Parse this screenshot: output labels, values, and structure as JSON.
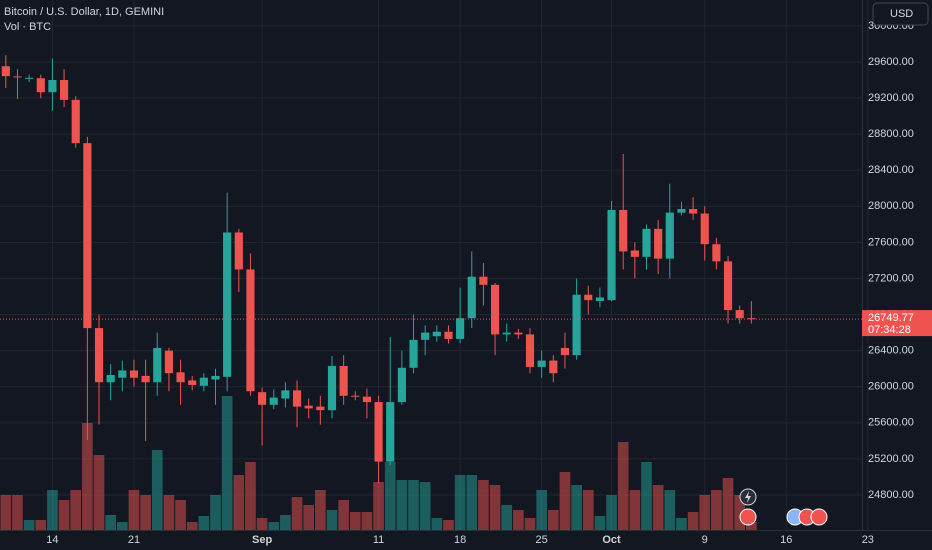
{
  "chart_data": {
    "type": "candlestick",
    "title": "Bitcoin / U.S. Dollar, 1D, GEMINI",
    "subtitle": "Vol · BTC",
    "currency": "USD",
    "countdown": "07:34:28",
    "up_color": "#26a69a",
    "down_color": "#ef5350",
    "grid": true,
    "x": [
      "08-10",
      "08-11",
      "08-12",
      "08-13",
      "08-14",
      "08-15",
      "08-16",
      "08-17",
      "08-18",
      "08-19",
      "08-20",
      "08-21",
      "08-22",
      "08-23",
      "08-24",
      "08-25",
      "08-26",
      "08-27",
      "08-28",
      "08-29",
      "08-30",
      "08-31",
      "09-01",
      "09-02",
      "09-03",
      "09-04",
      "09-05",
      "09-06",
      "09-07",
      "09-08",
      "09-09",
      "09-10",
      "09-11",
      "09-12",
      "09-13",
      "09-14",
      "09-15",
      "09-16",
      "09-17",
      "09-18",
      "09-19",
      "09-20",
      "09-21",
      "09-22",
      "09-23",
      "09-24",
      "09-25",
      "09-26",
      "09-27",
      "09-28",
      "09-29",
      "09-30",
      "10-01",
      "10-02",
      "10-03",
      "10-04",
      "10-05",
      "10-06",
      "10-07",
      "10-08",
      "10-09",
      "10-10",
      "10-11",
      "10-12",
      "10-13"
    ],
    "open": [
      29553,
      29440,
      29420,
      29420,
      29265,
      29400,
      29180,
      28700,
      26650,
      26050,
      26100,
      26180,
      26120,
      26050,
      26400,
      26160,
      26070,
      26010,
      26080,
      26110,
      27710,
      27300,
      25940,
      25800,
      25870,
      25960,
      25790,
      25780,
      25740,
      26230,
      25900,
      25890,
      25830,
      25170,
      25830,
      26210,
      26520,
      26560,
      26610,
      26530,
      26760,
      27220,
      27130,
      26580,
      26600,
      26580,
      26220,
      26290,
      26430,
      26350,
      27020,
      26950,
      26960,
      27960,
      27510,
      27440,
      27750,
      27420,
      27930,
      27970,
      27920,
      27580,
      27390,
      26850,
      26760
    ],
    "high": [
      29675,
      29520,
      29460,
      29460,
      29640,
      29520,
      29220,
      28770,
      26800,
      26250,
      26290,
      26300,
      26300,
      26600,
      26430,
      26300,
      26120,
      26150,
      26200,
      28150,
      27750,
      27480,
      25990,
      25970,
      26050,
      26070,
      25870,
      25900,
      26340,
      26350,
      25950,
      25980,
      25900,
      26550,
      26400,
      26800,
      26680,
      26680,
      26680,
      27100,
      27500,
      27370,
      27150,
      26700,
      26640,
      26650,
      26400,
      26350,
      26600,
      27200,
      27120,
      27100,
      28060,
      28580,
      27600,
      27800,
      27850,
      28250,
      28050,
      28100,
      28000,
      27650,
      27450,
      26900,
      26950
    ],
    "low": [
      29310,
      29190,
      29380,
      29200,
      29060,
      29100,
      28650,
      25410,
      25580,
      25850,
      25950,
      26000,
      25400,
      25900,
      25950,
      25800,
      25960,
      25950,
      25800,
      25950,
      27050,
      25900,
      25350,
      25750,
      25770,
      25550,
      25650,
      25580,
      25650,
      25800,
      25850,
      25650,
      24930,
      25130,
      25800,
      26150,
      26350,
      26500,
      26480,
      26480,
      26650,
      26900,
      26350,
      26500,
      26530,
      26150,
      26100,
      26050,
      26200,
      26300,
      26800,
      26880,
      26950,
      27300,
      27200,
      27300,
      27250,
      27200,
      27900,
      27850,
      27400,
      27300,
      26700,
      26700,
      26700
    ],
    "close": [
      29443,
      29430,
      29425,
      29265,
      29400,
      29180,
      28700,
      26650,
      26050,
      26130,
      26180,
      26100,
      26050,
      26430,
      26150,
      26050,
      26020,
      26100,
      26120,
      27710,
      27300,
      25950,
      25800,
      25880,
      25960,
      25780,
      25760,
      25740,
      26230,
      25900,
      25890,
      25830,
      25170,
      25830,
      26210,
      26520,
      26600,
      26610,
      26530,
      26760,
      27220,
      27130,
      26580,
      26600,
      26580,
      26220,
      26290,
      26150,
      26350,
      27020,
      26960,
      26990,
      27960,
      27500,
      27440,
      27750,
      27420,
      27930,
      27970,
      27920,
      27580,
      27390,
      26850,
      26760,
      26749.77
    ],
    "volume": [
      350,
      350,
      100,
      100,
      400,
      300,
      400,
      1070,
      750,
      150,
      80,
      400,
      350,
      800,
      350,
      300,
      80,
      140,
      350,
      1340,
      550,
      680,
      120,
      80,
      150,
      330,
      250,
      400,
      200,
      300,
      180,
      180,
      480,
      680,
      500,
      500,
      480,
      120,
      100,
      550,
      550,
      500,
      450,
      250,
      200,
      120,
      400,
      200,
      580,
      450,
      400,
      140,
      350,
      880,
      400,
      680,
      450,
      400,
      120,
      180,
      350,
      400,
      520,
      350,
      80
    ],
    "volume_ylim": [
      0,
      5300
    ],
    "xlim": [
      "08-10",
      "10-23"
    ],
    "xticks": [
      {
        "value": "08-14",
        "label": "14"
      },
      {
        "value": "08-21",
        "label": "21"
      },
      {
        "value": "09-01",
        "label": "Sep"
      },
      {
        "value": "09-11",
        "label": "11"
      },
      {
        "value": "09-18",
        "label": "18"
      },
      {
        "value": "09-25",
        "label": "25"
      },
      {
        "value": "10-01",
        "label": "Oct"
      },
      {
        "value": "10-09",
        "label": "9"
      },
      {
        "value": "10-16",
        "label": "16"
      },
      {
        "value": "10-23",
        "label": "23"
      }
    ],
    "ylim": [
      24412,
      30287
    ],
    "yticks": [
      {
        "value": 24800,
        "label": "24800.00"
      },
      {
        "value": 25200,
        "label": "25200.00"
      },
      {
        "value": 25600,
        "label": "25600.00"
      },
      {
        "value": 26000,
        "label": "26000.00"
      },
      {
        "value": 26400,
        "label": "26400.00"
      },
      {
        "value": 26800,
        "label": "26800.00"
      },
      {
        "value": 27200,
        "label": "27200.00"
      },
      {
        "value": 27600,
        "label": "27600.00"
      },
      {
        "value": 28000,
        "label": "28000.00"
      },
      {
        "value": 28400,
        "label": "28400.00"
      },
      {
        "value": 28800,
        "label": "28800.00"
      },
      {
        "value": 29200,
        "label": "29200.00"
      },
      {
        "value": 29600,
        "label": "29600.00"
      },
      {
        "value": 30000,
        "label": "30000.00"
      }
    ]
  }
}
